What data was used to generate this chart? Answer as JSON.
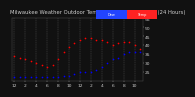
{
  "title": "Milwaukee Weather Outdoor Temperature vs Dew Point (24 Hours)",
  "bg_color": "#111111",
  "plot_bg_color": "#111111",
  "text_color": "#cccccc",
  "grid_color": "#555555",
  "temp_color": "#ff0000",
  "dew_color": "#0000ff",
  "legend_temp_color": "#ff2222",
  "legend_dew_color": "#2244ff",
  "ylim": [
    20,
    55
  ],
  "yticks": [
    25,
    30,
    35,
    40,
    45,
    50,
    55
  ],
  "hours": [
    0,
    1,
    2,
    3,
    4,
    5,
    6,
    7,
    8,
    9,
    10,
    11,
    12,
    13,
    14,
    15,
    16,
    17,
    18,
    19,
    20,
    21,
    22,
    23
  ],
  "temp_values": [
    34,
    33,
    32,
    31,
    30,
    29,
    28,
    29,
    32,
    36,
    39,
    41,
    43,
    44,
    44,
    43,
    43,
    42,
    40,
    41,
    42,
    42,
    40,
    38
  ],
  "dew_values": [
    22,
    22,
    22,
    22,
    22,
    22,
    22,
    22,
    22,
    23,
    23,
    24,
    25,
    25,
    25,
    26,
    28,
    30,
    32,
    33,
    35,
    36,
    36,
    36
  ],
  "xtick_positions": [
    0,
    2,
    4,
    6,
    8,
    10,
    12,
    14,
    16,
    18,
    20,
    22
  ],
  "xtick_labels": [
    "12",
    "2",
    "4",
    "6",
    "8",
    "10",
    "12",
    "2",
    "4",
    "6",
    "8",
    "10"
  ],
  "grid_positions": [
    0,
    2,
    4,
    6,
    8,
    10,
    12,
    14,
    16,
    18,
    20,
    22
  ],
  "title_fontsize": 3.8,
  "tick_fontsize": 3.2,
  "dot_size": 1.5
}
